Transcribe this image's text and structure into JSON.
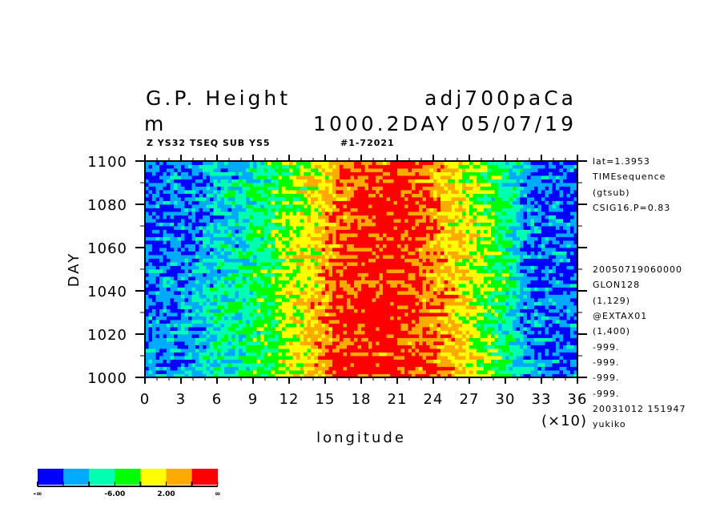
{
  "header": {
    "title_left": "G.P. Height",
    "title_right": "adj700paCa",
    "unit": "m",
    "subtitle_right": "1000.2DAY 05/07/19",
    "info_left": "Z YS32 TSEQ SUB YS5",
    "info_right": "#1-72021"
  },
  "annotations": [
    "lat=1.3953",
    "TIMEsequence",
    "(gtsub)",
    "CSIG16.P=0.83",
    "",
    "",
    "",
    "20050719060000",
    "GLON128",
    "(1,129)",
    "@EXTAX01",
    "(1,400)",
    "-999.",
    "-999.",
    "-999.",
    "-999.",
    "20031012 151947",
    "yukiko"
  ],
  "chart_data": {
    "type": "heatmap",
    "xlabel": "longitude",
    "xscale_label": "(×10)",
    "ylabel": "DAY",
    "xlim": [
      0,
      36
    ],
    "ylim": [
      1000,
      1100
    ],
    "xticks": [
      "0",
      "3",
      "6",
      "9",
      "12",
      "15",
      "18",
      "21",
      "24",
      "27",
      "30",
      "33",
      "36"
    ],
    "yticks": [
      "1000",
      "1020",
      "1040",
      "1060",
      "1080",
      "1100"
    ],
    "levels_colors": [
      "#0000ff",
      "#00aaff",
      "#00ffb0",
      "#00ff00",
      "#ffff00",
      "#ffaa00",
      "#ff0000"
    ],
    "colorbar_labels": [
      "-∞",
      "-6.00",
      "2.00",
      "∞"
    ],
    "approx_mean_level_by_longitude": {
      "longitude": [
        0,
        2,
        4,
        6,
        8,
        10,
        12,
        14,
        16,
        18,
        20,
        22,
        24,
        26,
        28,
        30,
        32,
        34,
        36
      ],
      "day_1000": [
        0.8,
        0.8,
        1.0,
        2.0,
        2.2,
        3.0,
        4.0,
        4.6,
        6,
        6,
        6,
        6,
        5.5,
        4.5,
        3.5,
        2.5,
        0.8,
        0.5,
        0.5
      ],
      "day_1100": [
        0.5,
        0.5,
        0.6,
        1.3,
        1.6,
        2.6,
        3.3,
        4.0,
        5.0,
        6,
        6,
        6,
        5.0,
        4.2,
        3.2,
        2.2,
        0.8,
        0.5,
        0.5
      ]
    }
  }
}
